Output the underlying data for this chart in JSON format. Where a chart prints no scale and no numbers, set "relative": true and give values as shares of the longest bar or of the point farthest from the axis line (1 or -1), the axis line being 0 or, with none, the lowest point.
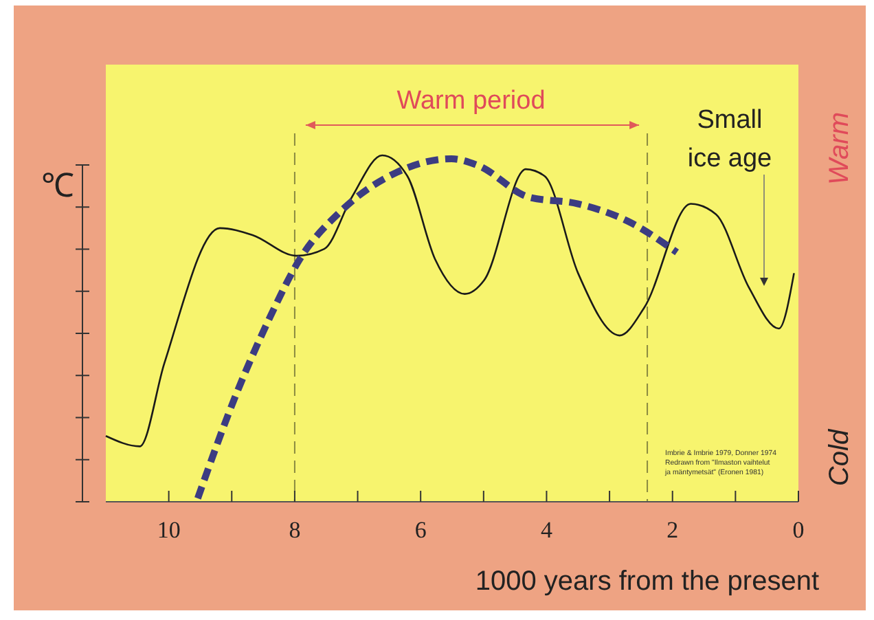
{
  "chart_data": {
    "type": "line",
    "relative": true,
    "xlabel": "1000 years from the present",
    "ylabel": "℃",
    "xlim": [
      11,
      0
    ],
    "xticks": [
      10,
      {
        "value": 9,
        "label": null
      },
      8,
      {
        "value": 7,
        "label": null
      },
      6,
      {
        "value": 5,
        "label": null
      },
      4,
      {
        "value": 3,
        "label": null
      },
      2,
      {
        "value": 1,
        "label": null
      },
      0
    ],
    "series": [
      {
        "color": "#1a1a1a",
        "line_style": "solid",
        "x": [
          11.0,
          10.46,
          10.07,
          9.19,
          8.67,
          7.97,
          7.53,
          7.09,
          6.61,
          6.21,
          5.77,
          5.3,
          4.99,
          4.33,
          4.03,
          3.5,
          2.84,
          2.45,
          1.71,
          1.31,
          0.79,
          0.31,
          0.07
        ],
        "values": [
          0.19,
          0.16,
          0.4,
          0.79,
          0.77,
          0.71,
          0.73,
          0.88,
          1.0,
          0.94,
          0.7,
          0.6,
          0.64,
          0.96,
          0.94,
          0.66,
          0.48,
          0.56,
          0.86,
          0.83,
          0.62,
          0.5,
          0.66
        ]
      },
      {
        "color": "#3c3c82",
        "line_style": "dashed",
        "x": [
          9.54,
          8.93,
          8.4,
          7.92,
          7.26,
          6.39,
          5.51,
          5.08,
          4.29,
          3.5,
          2.71,
          1.93
        ],
        "values": [
          0.01,
          0.31,
          0.53,
          0.7,
          0.84,
          0.95,
          0.99,
          0.97,
          0.88,
          0.86,
          0.81,
          0.72
        ]
      }
    ],
    "ref_lines": [
      {
        "axis": "x",
        "value": 8,
        "color": "#8a8a40",
        "line_style": "dashed"
      },
      {
        "axis": "x",
        "value": 2.4,
        "color": "#8a8a40",
        "line_style": "dashed"
      }
    ],
    "annotations": [
      "Warm period",
      "Small ice age",
      "Warm",
      "Cold",
      "Imbrie & Imbrie 1979, Donner 1974",
      "Redrawn from \"Ilmaston vaihtelut",
      "ja mäntymetsät\" (Eronen 1981)"
    ]
  }
}
